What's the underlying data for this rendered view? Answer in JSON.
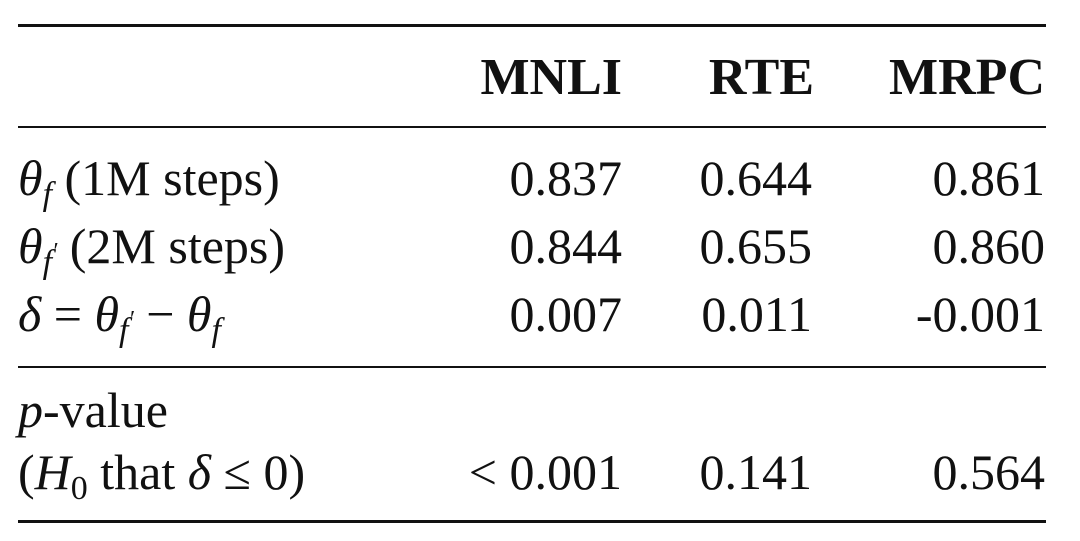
{
  "table": {
    "headers": [
      "MNLI",
      "RTE",
      "MRPC"
    ],
    "rows": [
      {
        "label": {
          "sym": "θ",
          "sub": "f",
          "prime": "",
          "text": " (1M steps)"
        },
        "values": [
          "0.837",
          "0.644",
          "0.861"
        ]
      },
      {
        "label": {
          "sym": "θ",
          "sub": "f",
          "prime": "′",
          "text": " (2M steps)"
        },
        "values": [
          "0.844",
          "0.655",
          "0.860"
        ]
      },
      {
        "label": {
          "delta": "δ",
          "eq": " = ",
          "sym1": "θ",
          "sub1": "f",
          "prime1": "′",
          "minus": " − ",
          "sym2": "θ",
          "sub2": "f"
        },
        "values": [
          "0.007",
          "0.011",
          "-0.001"
        ]
      }
    ],
    "pvalue": {
      "line1_p": "p",
      "line1_text": "-value",
      "line2_open": "(",
      "line2_H": "H",
      "line2_sub": "0",
      "line2_mid": " that ",
      "line2_delta": "δ",
      "line2_rest": " ≤ 0)",
      "values": [
        "< 0.001",
        "0.141",
        "0.564"
      ]
    }
  }
}
